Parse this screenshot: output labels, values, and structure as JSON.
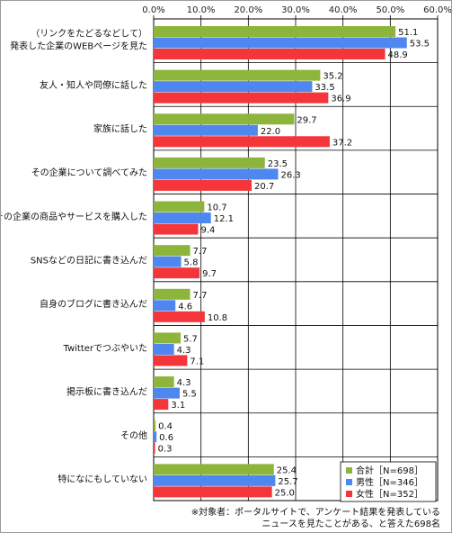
{
  "chart_data": {
    "type": "bar",
    "orientation": "horizontal",
    "xlim": [
      0,
      60
    ],
    "ticks": [
      "0.0%",
      "10.0%",
      "20.0%",
      "30.0%",
      "40.0%",
      "50.0%",
      "60.0%"
    ],
    "tick_values": [
      0,
      10,
      20,
      30,
      40,
      50,
      60
    ],
    "grid": true,
    "legend_position": "bottom-right",
    "categories": [
      [
        "（リンクをたどるなどして）",
        "発表した企業のWEBページを見た"
      ],
      [
        "友人・知人や同僚に話した"
      ],
      [
        "家族に話した"
      ],
      [
        "その企業について調べてみた"
      ],
      [
        "その企業の商品やサービスを購入した"
      ],
      [
        "SNSなどの日記に書き込んだ"
      ],
      [
        "自身のブログに書き込んだ"
      ],
      [
        "Twitterでつぶやいた"
      ],
      [
        "掲示板に書き込んだ"
      ],
      [
        "その他"
      ],
      [
        "特になにもしていない"
      ]
    ],
    "series": [
      {
        "name": "合計［N=698］",
        "color": "#8db53c",
        "values": [
          51.1,
          35.2,
          29.7,
          23.5,
          10.7,
          7.7,
          7.7,
          5.7,
          4.3,
          0.4,
          25.4
        ],
        "labels": [
          "51.1",
          "35.2",
          "29.7",
          "23.5",
          "10.7",
          "7.7",
          "7.7",
          "5.7",
          "4.3",
          "0.4",
          "25.4"
        ]
      },
      {
        "name": "男性［N=346］",
        "color": "#4f87f0",
        "values": [
          53.5,
          33.5,
          22.0,
          26.3,
          12.1,
          5.8,
          4.6,
          4.3,
          5.5,
          0.6,
          25.7
        ],
        "labels": [
          "53.5",
          "33.5",
          "22.0",
          "26.3",
          "12.1",
          "5.8",
          "4.6",
          "4.3",
          "5.5",
          "0.6",
          "25.7"
        ]
      },
      {
        "name": "女性［N=352］",
        "color": "#f4363a",
        "values": [
          48.9,
          36.9,
          37.2,
          20.7,
          9.4,
          9.7,
          10.8,
          7.1,
          3.1,
          0.3,
          25.0
        ],
        "labels": [
          "48.9",
          "36.9",
          "37.2",
          "20.7",
          "9.4",
          "9.7",
          "10.8",
          "7.1",
          "3.1",
          "0.3",
          "25.0"
        ]
      }
    ]
  },
  "footnote": {
    "line1": "※対象者：ポータルサイトで、アンケート結果を発表している",
    "line2": "ニュースを見たことがある、と答えた698名"
  }
}
